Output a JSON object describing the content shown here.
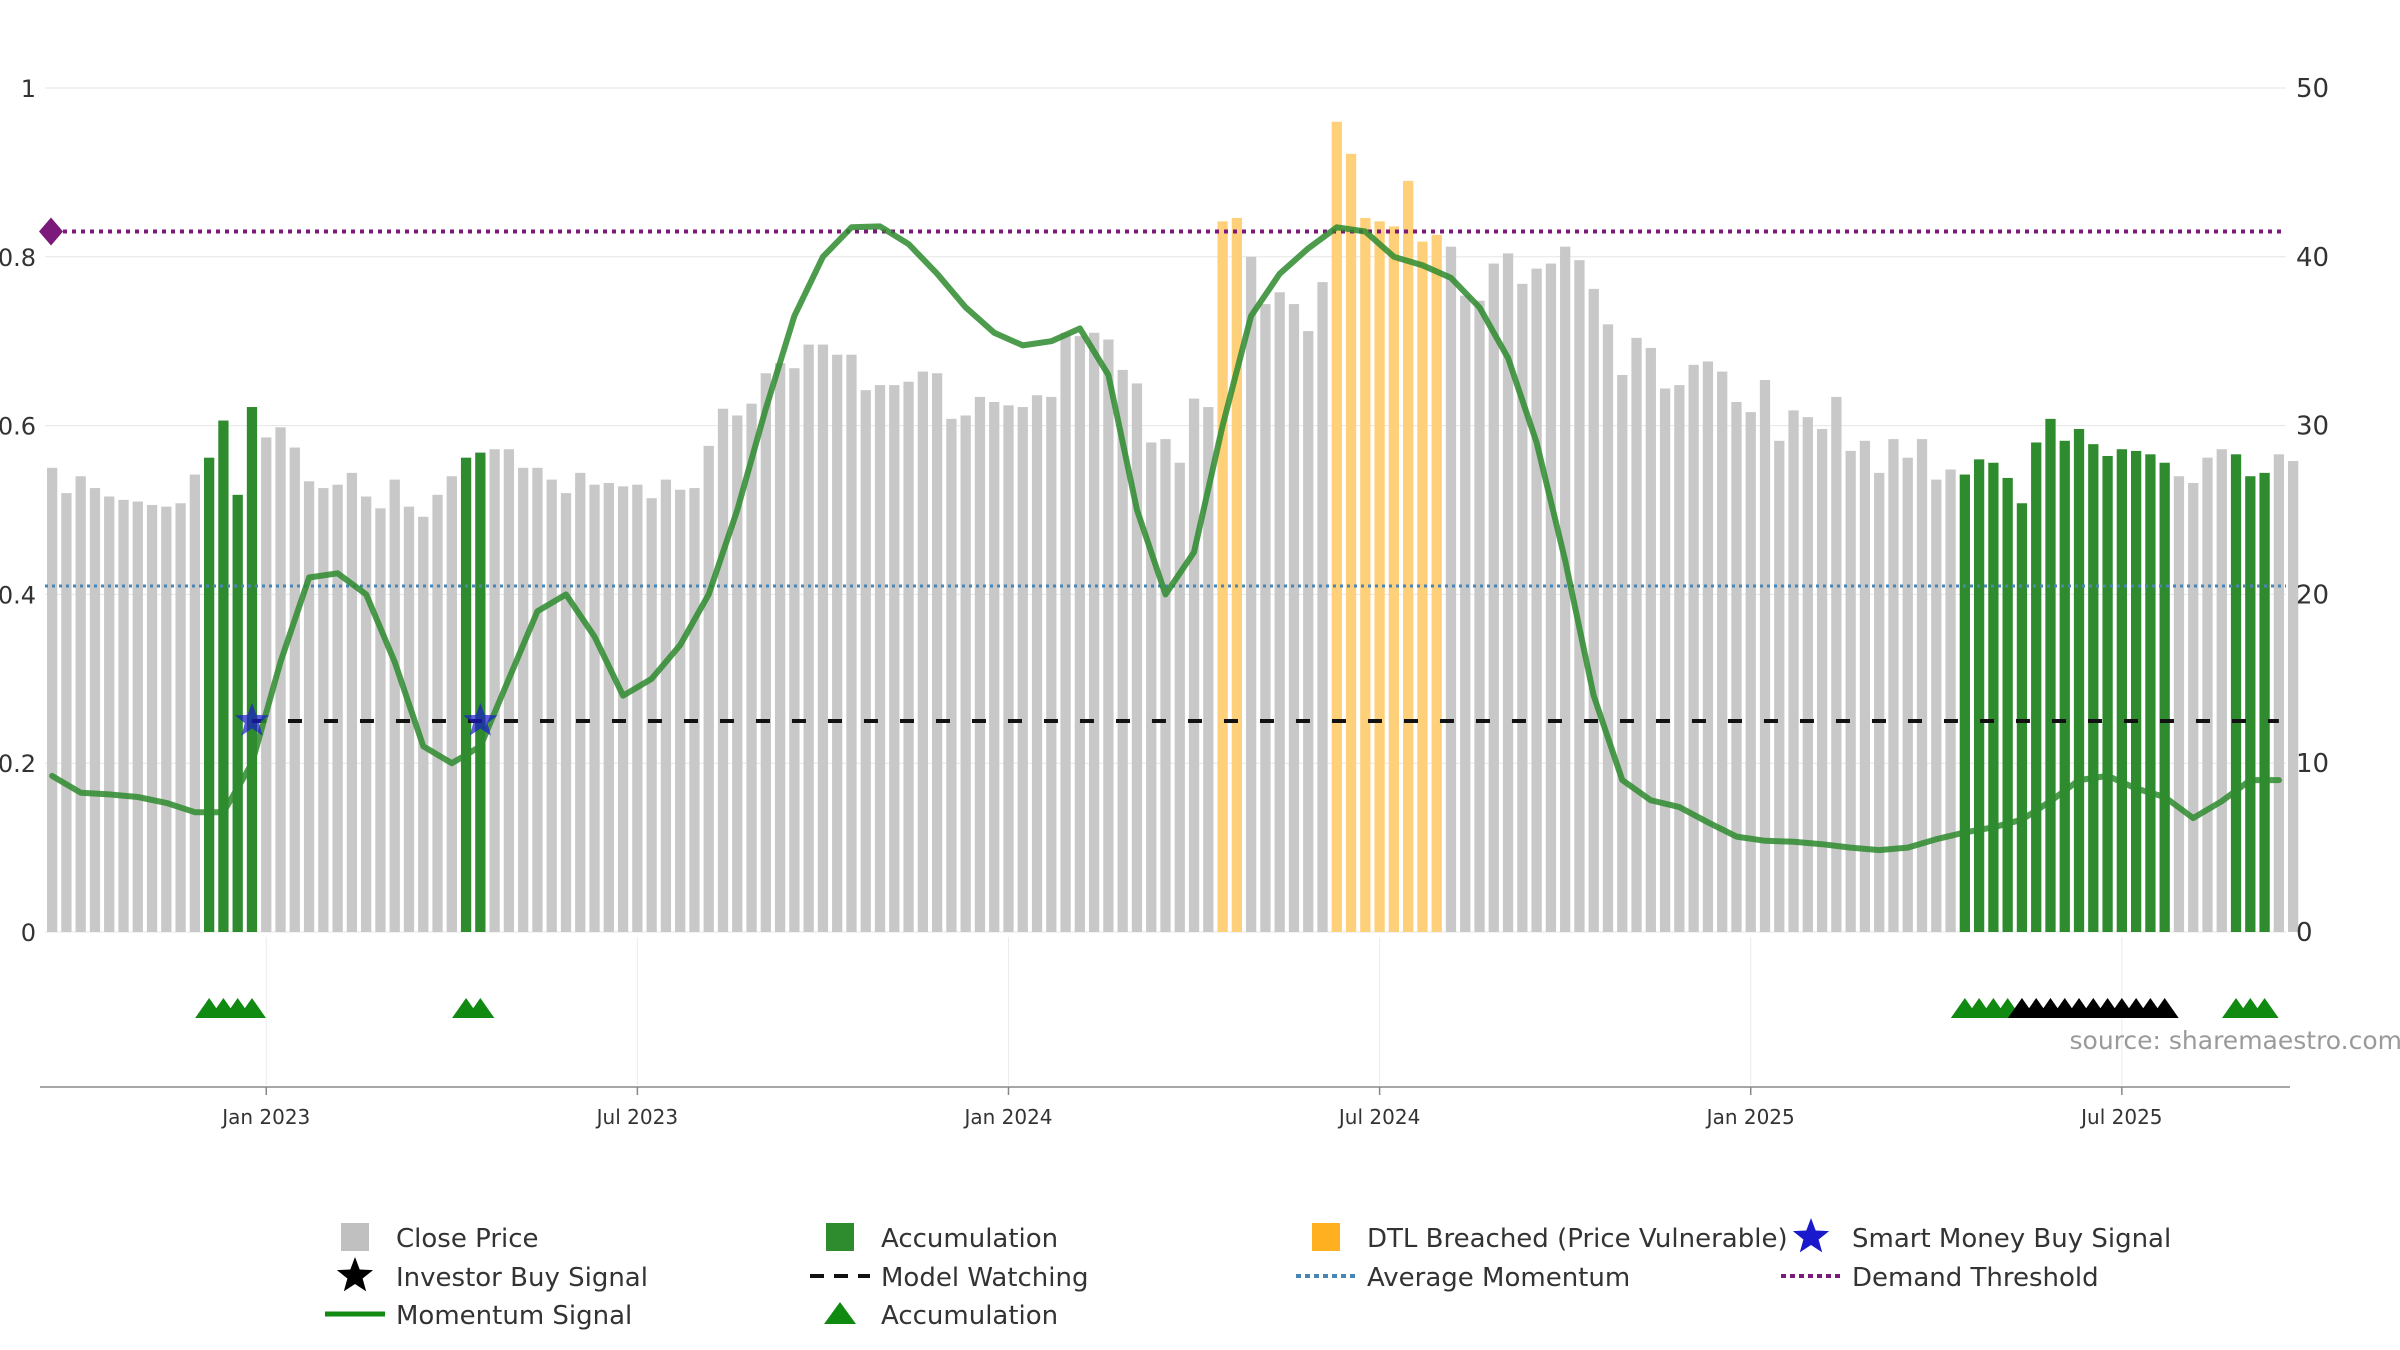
{
  "chart_data": {
    "type": "bar",
    "title": "",
    "source_label": "source: sharemaestro.com",
    "left_axis": {
      "min": 0,
      "max": 1,
      "ticks": [
        0,
        0.2,
        0.4,
        0.6,
        0.8,
        1
      ],
      "tick_labels": [
        "0",
        "0.2",
        "0.4",
        "0.6",
        "0.8",
        "1"
      ]
    },
    "right_axis": {
      "min": 0,
      "max": 50,
      "ticks": [
        0,
        10,
        20,
        30,
        40,
        50
      ],
      "tick_labels": [
        "0",
        "10",
        "20",
        "30",
        "40",
        "50"
      ]
    },
    "x_axis": {
      "tick_labels": [
        "Jan 2023",
        "Jul 2023",
        "Jan 2024",
        "Jul 2024",
        "Jan 2025",
        "Jul 2025"
      ],
      "tick_weeks": [
        15,
        41,
        67,
        93,
        119,
        145
      ]
    },
    "weeks": 157,
    "close_price": [
      27.5,
      26,
      27,
      26.3,
      25.8,
      25.6,
      25.5,
      25.3,
      25.2,
      25.4,
      27.1,
      28.1,
      30.3,
      25.9,
      31.1,
      29.3,
      29.9,
      28.7,
      26.7,
      26.3,
      26.5,
      27.2,
      25.8,
      25.1,
      26.8,
      25.2,
      24.6,
      25.9,
      27,
      28.1,
      28.4,
      28.6,
      28.6,
      27.5,
      27.5,
      26.8,
      26,
      27.2,
      26.5,
      26.6,
      26.4,
      26.5,
      25.7,
      26.8,
      26.2,
      26.3,
      28.8,
      31,
      30.6,
      31.3,
      33.1,
      33.7,
      33.4,
      34.8,
      34.8,
      34.2,
      34.2,
      32.1,
      32.4,
      32.4,
      32.6,
      33.2,
      33.1,
      30.4,
      30.6,
      31.7,
      31.4,
      31.2,
      31.1,
      31.8,
      31.7,
      35.5,
      35.3,
      35.5,
      35.1,
      33.3,
      32.5,
      29,
      29.2,
      27.8,
      31.6,
      31.1,
      42.1,
      42.3,
      40,
      37.2,
      37.9,
      37.2,
      35.6,
      38.5,
      48,
      46.1,
      42.3,
      42.1,
      41.8,
      44.5,
      40.9,
      41.3,
      40.6,
      37.7,
      37.4,
      39.6,
      40.2,
      38.4,
      39.3,
      39.6,
      40.6,
      39.8,
      38.1,
      36,
      33,
      35.2,
      34.6,
      32.2,
      32.4,
      33.6,
      33.8,
      33.2,
      31.4,
      30.8,
      32.7,
      29.1,
      30.9,
      30.5,
      29.8,
      31.7,
      28.5,
      29.1,
      27.2,
      29.2,
      28.1,
      29.2,
      26.8,
      27.4,
      27.1,
      28,
      27.8,
      26.9,
      25.4,
      29,
      30.4,
      29.1,
      29.8,
      28.9,
      28.2,
      28.6,
      28.5,
      28.3,
      27.8,
      27,
      26.6,
      28.1,
      28.6,
      28.3,
      27,
      27.2,
      28.3,
      27.9
    ],
    "series": [
      {
        "name": "Close Price",
        "kind": "bar",
        "color": "#c8c8c8"
      },
      {
        "name": "Accumulation",
        "kind": "bar",
        "color": "#2e8b2e",
        "weeks": [
          11,
          12,
          13,
          14,
          29,
          30,
          134,
          135,
          136,
          137,
          138,
          139,
          140,
          141,
          142,
          143,
          144,
          145,
          146,
          147,
          148,
          153,
          154,
          155
        ]
      },
      {
        "name": "DTL Breached (Price Vulnerable)",
        "kind": "bar",
        "color": "#ffd07a",
        "weeks": [
          82,
          83,
          90,
          91,
          92,
          93,
          94,
          95,
          96,
          97
        ]
      },
      {
        "name": "Momentum Signal",
        "kind": "line",
        "color": "#2e8b2e",
        "weeks": [
          0,
          2,
          4,
          6,
          8,
          10,
          12,
          14,
          16,
          18,
          20,
          22,
          24,
          26,
          28,
          30,
          32,
          34,
          36,
          38,
          40,
          42,
          44,
          46,
          48,
          50,
          52,
          54,
          56,
          58,
          60,
          62,
          64,
          66,
          68,
          70,
          72,
          74,
          76,
          78,
          80,
          82,
          84,
          86,
          88,
          90,
          92,
          94,
          96,
          98,
          100,
          102,
          104,
          106,
          108,
          110,
          112,
          114,
          116,
          118,
          120,
          122,
          124,
          126,
          128,
          130,
          132,
          134,
          136,
          138,
          140,
          142,
          144,
          146,
          148,
          150,
          152,
          154,
          156
        ],
        "values": [
          0.185,
          0.165,
          0.163,
          0.16,
          0.153,
          0.142,
          0.142,
          0.2,
          0.32,
          0.42,
          0.425,
          0.4,
          0.32,
          0.22,
          0.2,
          0.22,
          0.3,
          0.38,
          0.4,
          0.35,
          0.28,
          0.3,
          0.34,
          0.4,
          0.5,
          0.62,
          0.73,
          0.8,
          0.835,
          0.836,
          0.815,
          0.78,
          0.74,
          0.71,
          0.695,
          0.7,
          0.715,
          0.66,
          0.5,
          0.4,
          0.45,
          0.6,
          0.73,
          0.78,
          0.81,
          0.835,
          0.83,
          0.8,
          0.79,
          0.775,
          0.74,
          0.68,
          0.58,
          0.44,
          0.28,
          0.18,
          0.156,
          0.148,
          0.13,
          0.113,
          0.108,
          0.107,
          0.104,
          0.1,
          0.097,
          0.1,
          0.11,
          0.118,
          0.124,
          0.133,
          0.155,
          0.18,
          0.185,
          0.17,
          0.16,
          0.135,
          0.155,
          0.18,
          0.18
        ]
      },
      {
        "name": "Average Momentum",
        "kind": "hline",
        "value": 0.41,
        "color": "#4a86b4"
      },
      {
        "name": "Demand Threshold",
        "kind": "hline",
        "value": 0.83,
        "color": "#7b1a7b"
      },
      {
        "name": "Model Watching",
        "kind": "hline",
        "value": 0.25,
        "start_week": 14,
        "end_week": 156,
        "color": "#111111"
      },
      {
        "name": "Smart Money Buy Signal",
        "kind": "marker",
        "weeks": [
          14,
          30
        ],
        "value": 0.25,
        "color": "#1a1acc"
      },
      {
        "name": "Accumulation",
        "kind": "triangle",
        "weeks": [
          11,
          12,
          13,
          14,
          29,
          30,
          134,
          135,
          136,
          137,
          153,
          154,
          155
        ],
        "color": "#118a11"
      },
      {
        "name": "Investor Buy Signal",
        "kind": "triangle",
        "weeks": [
          138,
          139,
          140,
          141,
          142,
          143,
          144,
          145,
          146,
          147,
          148
        ],
        "color": "#000000"
      }
    ],
    "legend": {
      "placement": "bottom",
      "items": [
        {
          "label": "Close Price",
          "symbol": "square",
          "color": "#c0c0c0"
        },
        {
          "label": "Accumulation",
          "symbol": "square",
          "color": "#2e8b2e"
        },
        {
          "label": "DTL Breached (Price Vulnerable)",
          "symbol": "square",
          "color": "#ffb020"
        },
        {
          "label": "Smart Money Buy Signal",
          "symbol": "star",
          "color": "#1a1acc"
        },
        {
          "label": "Investor Buy Signal",
          "symbol": "star",
          "color": "#000000"
        },
        {
          "label": "Model Watching",
          "symbol": "dash",
          "color": "#111111"
        },
        {
          "label": "Average Momentum",
          "symbol": "dots",
          "color": "#4a86b4"
        },
        {
          "label": "Demand Threshold",
          "symbol": "dots",
          "color": "#7b1a7b"
        },
        {
          "label": "Momentum Signal",
          "symbol": "line",
          "color": "#118a11"
        },
        {
          "label": "Accumulation",
          "symbol": "triangle",
          "color": "#118a11"
        }
      ]
    }
  }
}
